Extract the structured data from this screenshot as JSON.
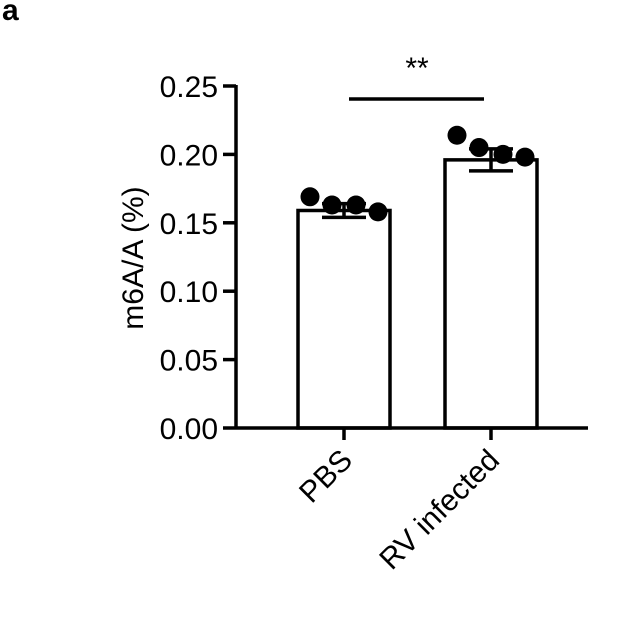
{
  "panel_label": "a",
  "chart_data": {
    "type": "bar",
    "categories": [
      "PBS",
      "RV infected"
    ],
    "values": [
      0.159,
      0.196
    ],
    "sem": [
      0.005,
      0.008
    ],
    "points": [
      [
        0.169,
        0.163,
        0.163,
        0.158
      ],
      [
        0.214,
        0.205,
        0.2,
        0.198
      ]
    ],
    "ylabel": "m6A/A (%)",
    "ylim": [
      0,
      0.25
    ],
    "yticks": [
      0.0,
      0.05,
      0.1,
      0.15,
      0.2,
      0.25
    ],
    "ytick_labels": [
      "0.00",
      "0.05",
      "0.10",
      "0.15",
      "0.20",
      "0.25"
    ],
    "significance": "**",
    "grid": false,
    "colors": {
      "bar_fill": "#ffffff",
      "stroke": "#000000",
      "points": "#000000"
    }
  }
}
